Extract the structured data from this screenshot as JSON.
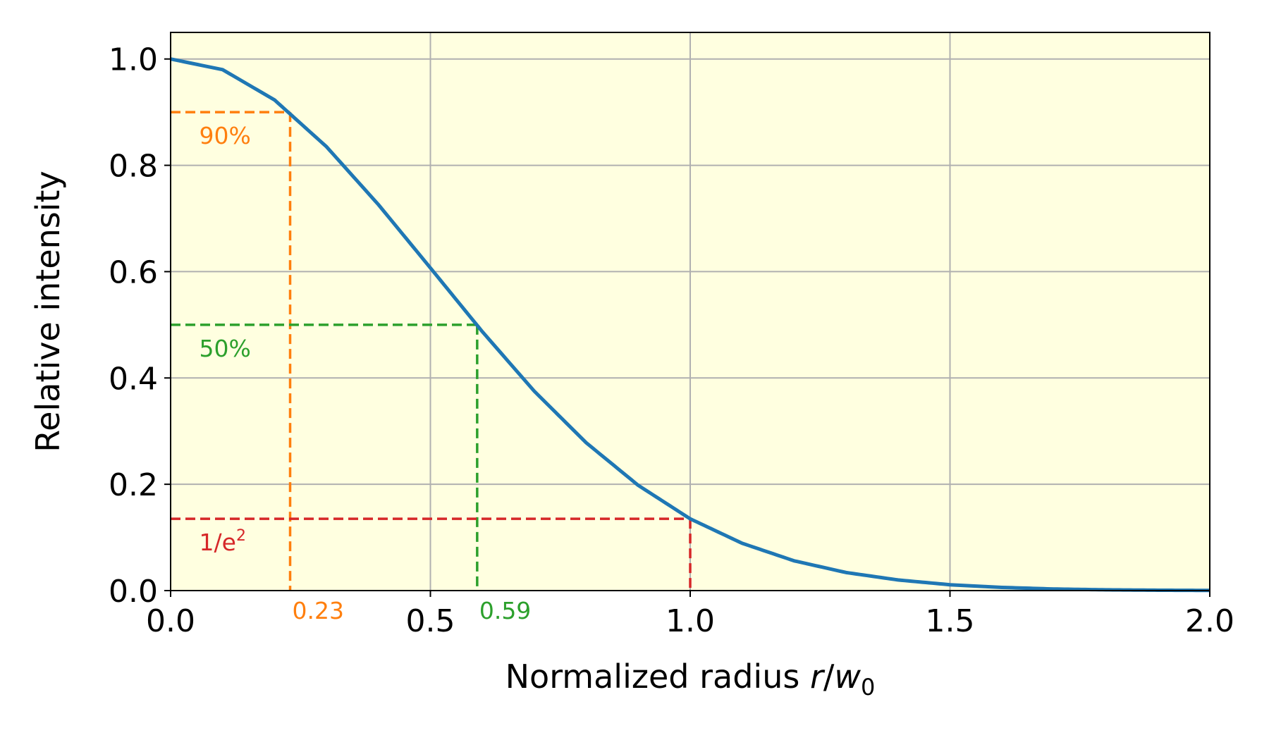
{
  "chart_data": {
    "type": "line",
    "xlabel_main": "Normalized radius ",
    "xlabel_var_r": "r",
    "xlabel_slash": "/",
    "xlabel_var_w": "w",
    "xlabel_sub": "0",
    "ylabel": "Relative intensity",
    "xlim": [
      0,
      2
    ],
    "ylim": [
      0,
      1.05
    ],
    "xticks": [
      {
        "v": 0.0,
        "label": "0.0"
      },
      {
        "v": 0.5,
        "label": "0.5"
      },
      {
        "v": 1.0,
        "label": "1.0"
      },
      {
        "v": 1.5,
        "label": "1.5"
      },
      {
        "v": 2.0,
        "label": "2.0"
      }
    ],
    "yticks": [
      {
        "v": 0.0,
        "label": "0.0"
      },
      {
        "v": 0.2,
        "label": "0.2"
      },
      {
        "v": 0.4,
        "label": "0.4"
      },
      {
        "v": 0.6,
        "label": "0.6"
      },
      {
        "v": 0.8,
        "label": "0.8"
      },
      {
        "v": 1.0,
        "label": "1.0"
      }
    ],
    "grid": true,
    "background_color": "#ffffe0",
    "series": [
      {
        "color": "#1f77b4",
        "x": [
          0.0,
          0.1,
          0.2,
          0.3,
          0.4,
          0.5,
          0.6,
          0.7,
          0.8,
          0.9,
          1.0,
          1.1,
          1.2,
          1.3,
          1.4,
          1.5,
          1.6,
          1.7,
          1.8,
          1.9,
          2.0
        ],
        "y": [
          1.0,
          0.98,
          0.923,
          0.835,
          0.726,
          0.607,
          0.487,
          0.375,
          0.278,
          0.198,
          0.135,
          0.089,
          0.056,
          0.034,
          0.02,
          0.011,
          0.006,
          0.003,
          0.0015,
          0.0007,
          0.0003
        ]
      }
    ],
    "annotations": [
      {
        "name": "ninety",
        "x": 0.23,
        "y": 0.9,
        "color": "#ff7f0e",
        "level_label": "90%",
        "radius_label": "0.23"
      },
      {
        "name": "fifty",
        "x": 0.59,
        "y": 0.5,
        "color": "#2ca02c",
        "level_label": "50%",
        "radius_label": "0.59"
      },
      {
        "name": "inv-e2",
        "x": 1.0,
        "y": 0.135,
        "color": "#d62728",
        "level_label_base": "1/e",
        "level_label_sup": "2",
        "radius_label": ""
      }
    ]
  }
}
